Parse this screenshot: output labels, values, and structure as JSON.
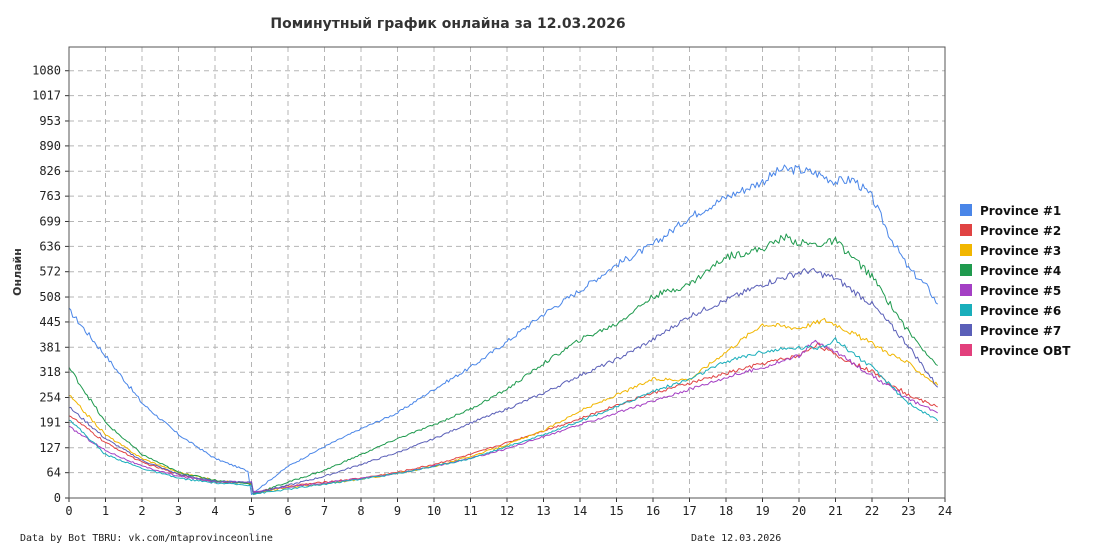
{
  "chart_data": {
    "type": "line",
    "title": "Поминутный график онлайна за 12.03.2026",
    "ylabel": "Онлайн",
    "xlabel": "",
    "xlim": [
      0,
      24
    ],
    "ylim": [
      0,
      1140
    ],
    "x_ticks": [
      "0",
      "1",
      "2",
      "3",
      "4",
      "5",
      "6",
      "7",
      "8",
      "9",
      "10",
      "11",
      "12",
      "13",
      "14",
      "15",
      "16",
      "17",
      "18",
      "19",
      "20",
      "21",
      "22",
      "23",
      "24"
    ],
    "y_ticks": [
      "0",
      "64",
      "127",
      "191",
      "254",
      "318",
      "381",
      "445",
      "508",
      "572",
      "636",
      "699",
      "763",
      "826",
      "890",
      "953",
      "1017",
      "1080"
    ],
    "grid": true,
    "legend_position": "right",
    "footer_left": "Data by Bot TBRU: vk.com/mtaprovinceonline",
    "footer_right": "Date 12.03.2026",
    "series": [
      {
        "name": "Province #1",
        "color": "#4a86e8",
        "points": [
          [
            0,
            475
          ],
          [
            1,
            360
          ],
          [
            2,
            240
          ],
          [
            3,
            160
          ],
          [
            4,
            100
          ],
          [
            4.9,
            68
          ],
          [
            5,
            10
          ],
          [
            6,
            80
          ],
          [
            7,
            130
          ],
          [
            8,
            175
          ],
          [
            9,
            215
          ],
          [
            10,
            275
          ],
          [
            11,
            330
          ],
          [
            12,
            395
          ],
          [
            13,
            465
          ],
          [
            14,
            525
          ],
          [
            15,
            590
          ],
          [
            16,
            640
          ],
          [
            17,
            710
          ],
          [
            18,
            760
          ],
          [
            19,
            800
          ],
          [
            19.5,
            830
          ],
          [
            20,
            830
          ],
          [
            20.5,
            820
          ],
          [
            21,
            800
          ],
          [
            21.5,
            805
          ],
          [
            22,
            760
          ],
          [
            22.5,
            660
          ],
          [
            23,
            580
          ],
          [
            23.5,
            535
          ],
          [
            23.8,
            490
          ]
        ]
      },
      {
        "name": "Province #2",
        "color": "#e04343",
        "points": [
          [
            0,
            210
          ],
          [
            1,
            140
          ],
          [
            2,
            90
          ],
          [
            3,
            60
          ],
          [
            4,
            40
          ],
          [
            5,
            38
          ],
          [
            5.05,
            15
          ],
          [
            6,
            30
          ],
          [
            7,
            40
          ],
          [
            8,
            50
          ],
          [
            9,
            65
          ],
          [
            10,
            85
          ],
          [
            11,
            110
          ],
          [
            12,
            140
          ],
          [
            13,
            170
          ],
          [
            14,
            200
          ],
          [
            15,
            235
          ],
          [
            16,
            265
          ],
          [
            17,
            290
          ],
          [
            18,
            315
          ],
          [
            19,
            340
          ],
          [
            20,
            360
          ],
          [
            20.5,
            390
          ],
          [
            21,
            360
          ],
          [
            22,
            320
          ],
          [
            23,
            260
          ],
          [
            23.8,
            230
          ]
        ]
      },
      {
        "name": "Province #3",
        "color": "#f1b600",
        "points": [
          [
            0,
            260
          ],
          [
            1,
            160
          ],
          [
            2,
            100
          ],
          [
            3,
            65
          ],
          [
            4,
            45
          ],
          [
            5,
            35
          ],
          [
            5.05,
            10
          ],
          [
            6,
            28
          ],
          [
            7,
            35
          ],
          [
            8,
            48
          ],
          [
            9,
            62
          ],
          [
            10,
            80
          ],
          [
            11,
            105
          ],
          [
            12,
            135
          ],
          [
            13,
            170
          ],
          [
            14,
            220
          ],
          [
            15,
            260
          ],
          [
            16,
            300
          ],
          [
            17,
            300
          ],
          [
            18,
            370
          ],
          [
            19,
            440
          ],
          [
            20,
            430
          ],
          [
            20.7,
            450
          ],
          [
            21,
            440
          ],
          [
            22,
            390
          ],
          [
            23,
            340
          ],
          [
            23.8,
            285
          ]
        ]
      },
      {
        "name": "Province #4",
        "color": "#1f9a4e",
        "points": [
          [
            0,
            330
          ],
          [
            1,
            190
          ],
          [
            2,
            110
          ],
          [
            3,
            65
          ],
          [
            4,
            45
          ],
          [
            5,
            35
          ],
          [
            5.05,
            10
          ],
          [
            6,
            40
          ],
          [
            7,
            70
          ],
          [
            8,
            110
          ],
          [
            9,
            150
          ],
          [
            10,
            185
          ],
          [
            11,
            225
          ],
          [
            12,
            275
          ],
          [
            13,
            340
          ],
          [
            14,
            400
          ],
          [
            15,
            440
          ],
          [
            16,
            510
          ],
          [
            17,
            540
          ],
          [
            18,
            610
          ],
          [
            19,
            630
          ],
          [
            19.6,
            660
          ],
          [
            20,
            645
          ],
          [
            20.5,
            640
          ],
          [
            21,
            650
          ],
          [
            22,
            560
          ],
          [
            22.5,
            490
          ],
          [
            23,
            420
          ],
          [
            23.8,
            335
          ]
        ]
      },
      {
        "name": "Province #5",
        "color": "#a43fc4",
        "points": [
          [
            0,
            180
          ],
          [
            1,
            120
          ],
          [
            2,
            80
          ],
          [
            3,
            55
          ],
          [
            4,
            42
          ],
          [
            5,
            40
          ],
          [
            5.05,
            15
          ],
          [
            6,
            28
          ],
          [
            7,
            38
          ],
          [
            8,
            50
          ],
          [
            9,
            62
          ],
          [
            10,
            80
          ],
          [
            11,
            100
          ],
          [
            12,
            125
          ],
          [
            13,
            155
          ],
          [
            14,
            185
          ],
          [
            15,
            215
          ],
          [
            16,
            245
          ],
          [
            17,
            275
          ],
          [
            18,
            305
          ],
          [
            19,
            330
          ],
          [
            20,
            360
          ],
          [
            20.4,
            395
          ],
          [
            21,
            370
          ],
          [
            22,
            310
          ],
          [
            23,
            250
          ],
          [
            23.8,
            215
          ]
        ]
      },
      {
        "name": "Province #6",
        "color": "#19aebb",
        "points": [
          [
            0,
            200
          ],
          [
            1,
            110
          ],
          [
            2,
            75
          ],
          [
            3,
            50
          ],
          [
            4,
            38
          ],
          [
            5,
            32
          ],
          [
            5.05,
            10
          ],
          [
            6,
            22
          ],
          [
            7,
            35
          ],
          [
            8,
            48
          ],
          [
            9,
            62
          ],
          [
            10,
            80
          ],
          [
            11,
            100
          ],
          [
            12,
            130
          ],
          [
            13,
            160
          ],
          [
            14,
            195
          ],
          [
            15,
            230
          ],
          [
            16,
            270
          ],
          [
            17,
            300
          ],
          [
            18,
            345
          ],
          [
            19,
            370
          ],
          [
            20,
            380
          ],
          [
            20.5,
            380
          ],
          [
            21,
            400
          ],
          [
            22,
            330
          ],
          [
            23,
            240
          ],
          [
            23.8,
            195
          ]
        ]
      },
      {
        "name": "Province #7",
        "color": "#5a5fb8",
        "points": [
          [
            0,
            230
          ],
          [
            1,
            150
          ],
          [
            2,
            95
          ],
          [
            3,
            60
          ],
          [
            4,
            42
          ],
          [
            5,
            40
          ],
          [
            5.05,
            12
          ],
          [
            6,
            32
          ],
          [
            7,
            55
          ],
          [
            8,
            85
          ],
          [
            9,
            115
          ],
          [
            10,
            150
          ],
          [
            11,
            190
          ],
          [
            12,
            225
          ],
          [
            13,
            265
          ],
          [
            14,
            310
          ],
          [
            15,
            350
          ],
          [
            16,
            400
          ],
          [
            17,
            460
          ],
          [
            18,
            500
          ],
          [
            19,
            540
          ],
          [
            20,
            570
          ],
          [
            20.3,
            575
          ],
          [
            21,
            555
          ],
          [
            22,
            490
          ],
          [
            23,
            385
          ],
          [
            23.8,
            280
          ]
        ]
      },
      {
        "name": "Province OBT",
        "color": "#e23f7c",
        "points": []
      }
    ]
  }
}
